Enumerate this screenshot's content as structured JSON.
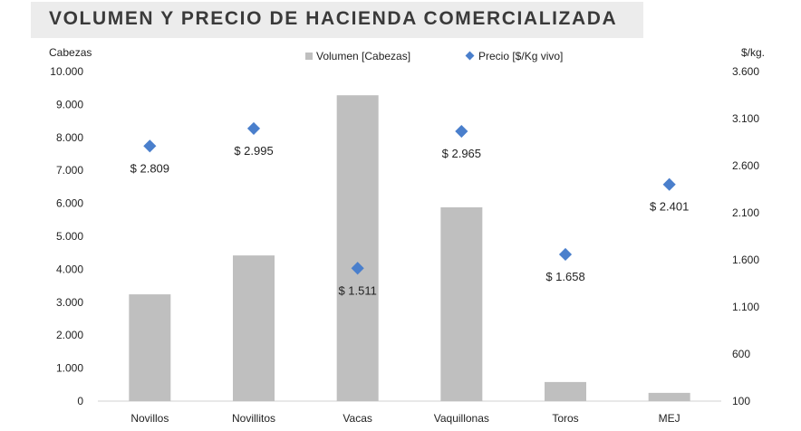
{
  "chart_data": {
    "type": "bar",
    "title": "VOLUMEN Y PRECIO DE HACIENDA COMERCIALIZADA",
    "categories": [
      "Novillos",
      "Novillitos",
      "Vacas",
      "Vaquillonas",
      "Toros",
      "MEJ"
    ],
    "series": [
      {
        "name": "Volumen [Cabezas]",
        "kind": "bar",
        "axis": "left",
        "color": "#bfbfbf",
        "values": [
          3240,
          4420,
          9280,
          5880,
          580,
          250
        ]
      },
      {
        "name": "Precio [$/Kg vivo]",
        "kind": "scatter",
        "axis": "right",
        "color": "#4a7fcc",
        "values": [
          2809,
          2995,
          1511,
          2965,
          1658,
          2401
        ],
        "labels": [
          "$ 2.809",
          "$ 2.995",
          "$ 1.511",
          "$ 2.965",
          "$ 1.658",
          "$ 2.401"
        ]
      }
    ],
    "ylabel_left": "Cabezas",
    "ylabel_right": "$/kg.",
    "ylim_left": [
      0,
      10000
    ],
    "ylim_right": [
      100,
      3600
    ],
    "yticks_left": [
      "0",
      "1.000",
      "2.000",
      "3.000",
      "4.000",
      "5.000",
      "6.000",
      "7.000",
      "8.000",
      "9.000",
      "10.000"
    ],
    "yticks_right": [
      "100",
      "600",
      "1.100",
      "1.600",
      "2.100",
      "2.600",
      "3.100",
      "3.600"
    ],
    "legend_position": "top-center"
  }
}
